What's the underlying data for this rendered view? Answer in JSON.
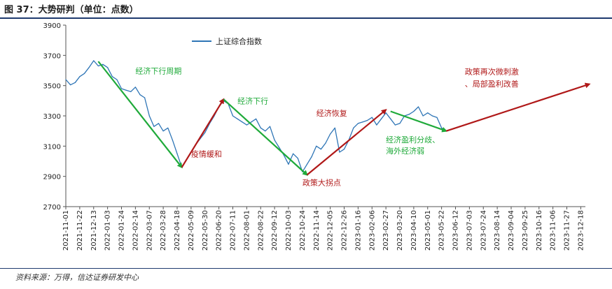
{
  "title": "图 37：大势研判（单位：点数）",
  "source": "资料来源：万得，信达证券研发中心",
  "colors": {
    "index": "#2e75b6",
    "green": "#1faa3a",
    "red": "#b01818",
    "rule": "#1e3a6e"
  },
  "chart_data": {
    "type": "line",
    "title": "",
    "xlabel": "",
    "ylabel": "",
    "ylim": [
      2700,
      3900
    ],
    "yticks": [
      2700,
      2900,
      3100,
      3300,
      3500,
      3700,
      3900
    ],
    "x_tick_labels": [
      "2021-11-01",
      "2021-11-22",
      "2021-12-13",
      "2022-01-03",
      "2022-01-24",
      "2022-02-14",
      "2022-03-07",
      "2022-03-28",
      "2022-04-18",
      "2022-05-09",
      "2022-05-30",
      "2022-06-20",
      "2022-07-11",
      "2022-08-01",
      "2022-08-22",
      "2022-09-12",
      "2022-10-03",
      "2022-10-24",
      "2022-11-14",
      "2022-12-05",
      "2022-12-26",
      "2023-01-16",
      "2023-02-06",
      "2023-02-27",
      "2023-03-20",
      "2023-04-10",
      "2023-05-01",
      "2023-05-22",
      "2023-06-12",
      "2023-07-03",
      "2023-07-24",
      "2023-08-14",
      "2023-09-04",
      "2023-09-25",
      "2023-10-16",
      "2023-11-06",
      "2023-11-27",
      "2023-12-18"
    ],
    "legend": {
      "position": "top-left",
      "entries": [
        "上证综合指数"
      ]
    },
    "series": [
      {
        "name": "上证综合指数",
        "x": [
          "2021-11-01",
          "2021-11-08",
          "2021-11-15",
          "2021-11-22",
          "2021-11-29",
          "2021-12-06",
          "2021-12-13",
          "2021-12-20",
          "2021-12-27",
          "2022-01-03",
          "2022-01-10",
          "2022-01-17",
          "2022-01-24",
          "2022-01-31",
          "2022-02-07",
          "2022-02-14",
          "2022-02-21",
          "2022-02-28",
          "2022-03-07",
          "2022-03-14",
          "2022-03-21",
          "2022-03-28",
          "2022-04-04",
          "2022-04-11",
          "2022-04-18",
          "2022-04-25",
          "2022-05-02",
          "2022-05-09",
          "2022-05-16",
          "2022-05-23",
          "2022-05-30",
          "2022-06-06",
          "2022-06-13",
          "2022-06-20",
          "2022-06-27",
          "2022-07-04",
          "2022-07-11",
          "2022-07-18",
          "2022-07-25",
          "2022-08-01",
          "2022-08-08",
          "2022-08-15",
          "2022-08-22",
          "2022-08-29",
          "2022-09-05",
          "2022-09-12",
          "2022-09-19",
          "2022-09-26",
          "2022-10-03",
          "2022-10-10",
          "2022-10-17",
          "2022-10-24",
          "2022-10-31",
          "2022-11-07",
          "2022-11-14",
          "2022-11-21",
          "2022-11-28",
          "2022-12-05",
          "2022-12-12",
          "2022-12-19",
          "2022-12-26",
          "2023-01-02",
          "2023-01-09",
          "2023-01-16",
          "2023-01-23",
          "2023-01-30",
          "2023-02-06",
          "2023-02-13",
          "2023-02-20",
          "2023-02-27",
          "2023-03-06",
          "2023-03-13",
          "2023-03-20",
          "2023-03-27",
          "2023-04-03",
          "2023-04-10",
          "2023-04-17",
          "2023-04-24",
          "2023-05-01",
          "2023-05-08",
          "2023-05-15",
          "2023-05-22",
          "2023-05-29"
        ],
        "values": [
          3540,
          3505,
          3520,
          3560,
          3580,
          3620,
          3665,
          3630,
          3640,
          3620,
          3560,
          3540,
          3480,
          3470,
          3460,
          3490,
          3440,
          3420,
          3300,
          3230,
          3250,
          3200,
          3220,
          3140,
          3050,
          2960,
          3010,
          3060,
          3110,
          3150,
          3190,
          3250,
          3300,
          3360,
          3400,
          3380,
          3300,
          3280,
          3260,
          3240,
          3260,
          3280,
          3220,
          3200,
          3230,
          3140,
          3090,
          3040,
          2980,
          3050,
          3020,
          2930,
          2980,
          3030,
          3100,
          3080,
          3120,
          3180,
          3220,
          3060,
          3080,
          3140,
          3220,
          3250,
          3260,
          3270,
          3290,
          3240,
          3280,
          3320,
          3280,
          3240,
          3250,
          3300,
          3310,
          3330,
          3360,
          3300,
          3320,
          3300,
          3290,
          3220,
          3200
        ]
      }
    ],
    "annotation_arrows": [
      {
        "color": "green",
        "from": [
          "2021-12-20",
          3660
        ],
        "to": [
          "2022-04-25",
          2960
        ]
      },
      {
        "color": "red",
        "from": [
          "2022-04-25",
          2960
        ],
        "to": [
          "2022-06-27",
          3410
        ]
      },
      {
        "color": "green",
        "from": [
          "2022-06-27",
          3410
        ],
        "to": [
          "2022-10-31",
          2910
        ]
      },
      {
        "color": "red",
        "from": [
          "2022-10-31",
          2910
        ],
        "to": [
          "2023-02-27",
          3340
        ]
      },
      {
        "color": "green",
        "from": [
          "2023-03-06",
          3330
        ],
        "to": [
          "2023-05-29",
          3200
        ]
      },
      {
        "color": "red",
        "from": [
          "2023-05-29",
          3200
        ],
        "to": [
          "2023-12-31",
          3510
        ]
      }
    ],
    "annotations": [
      {
        "text": "经济下行周期",
        "color": "green",
        "at": [
          "2022-02-14",
          3580
        ]
      },
      {
        "text": "疫情缓和",
        "color": "red",
        "at": [
          "2022-05-09",
          3030
        ]
      },
      {
        "text": "经济下行",
        "color": "green",
        "at": [
          "2022-07-18",
          3380
        ]
      },
      {
        "text": "经济恢复",
        "color": "red",
        "at": [
          "2022-11-14",
          3300
        ]
      },
      {
        "text": "政策大拐点",
        "color": "red",
        "at": [
          "2022-10-24",
          2840
        ]
      },
      {
        "text": "经济盈利分歧、",
        "color": "green",
        "at": [
          "2023-02-27",
          3125
        ]
      },
      {
        "text": "海外经济弱",
        "color": "green",
        "at": [
          "2023-02-27",
          3050
        ]
      },
      {
        "text": "政策再次微刺激",
        "color": "red",
        "at": [
          "2023-06-26",
          3575
        ]
      },
      {
        "text": "、局部盈利改善",
        "color": "red",
        "at": [
          "2023-06-26",
          3495
        ]
      }
    ]
  }
}
